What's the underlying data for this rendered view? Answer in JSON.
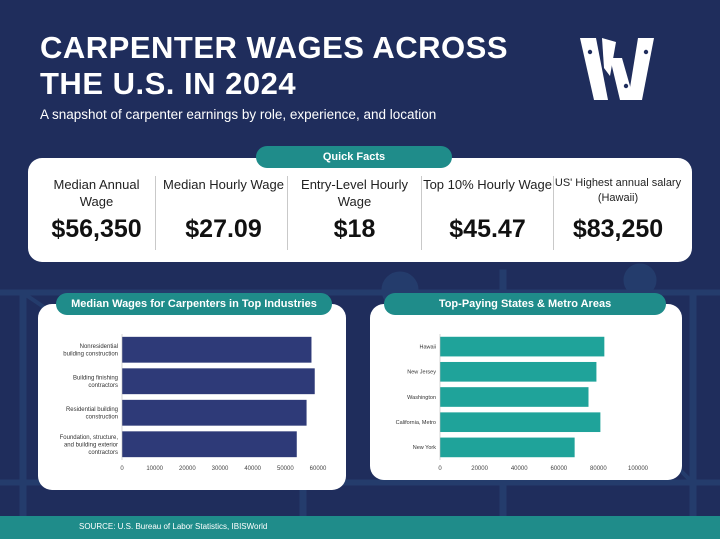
{
  "header": {
    "title_line1": "CARPENTER WAGES ACROSS",
    "title_line2": "THE U.S. IN 2024",
    "subtitle": "A snapshot of carpenter earnings by role, experience, and location"
  },
  "logo": {
    "icon": "w-logo-icon"
  },
  "quick_facts": {
    "heading": "Quick Facts",
    "items": [
      {
        "label": "Median Annual Wage",
        "value": "$56,350"
      },
      {
        "label": "Median Hourly Wage",
        "value": "$27.09"
      },
      {
        "label": "Entry-Level Hourly Wage",
        "value": "$18"
      },
      {
        "label": "Top 10% Hourly Wage",
        "value": "$45.47"
      },
      {
        "label": "US' Highest annual salary (Hawaii)",
        "value": "$83,250"
      }
    ]
  },
  "chart_data": [
    {
      "type": "bar",
      "orientation": "horizontal",
      "title": "Median Wages for Carpenters in Top Industries",
      "categories": [
        "Nonresidential building construction",
        "Building finishing contractors",
        "Residential building construction",
        "Foundation, structure, and building exterior contractors"
      ],
      "values": [
        58000,
        59000,
        56500,
        53500
      ],
      "xlim": [
        0,
        60000
      ],
      "ticks": [
        "0",
        "10000",
        "20000",
        "30000",
        "40000",
        "50000",
        "60000"
      ],
      "color": "#2e3a78"
    },
    {
      "type": "bar",
      "orientation": "horizontal",
      "title": "Top-Paying States & Metro Areas",
      "categories": [
        "Hawaii",
        "New Jersey",
        "Washington",
        "California, Metro",
        "New York"
      ],
      "values": [
        83000,
        79000,
        75000,
        81000,
        68000
      ],
      "xlim": [
        0,
        100000
      ],
      "ticks": [
        "0",
        "20000",
        "40000",
        "60000",
        "80000",
        "100000"
      ],
      "color": "#1fa39a"
    }
  ],
  "footer": {
    "source": "SOURCE: U.S. Bureau of Labor Statistics, IBISWorld"
  },
  "colors": {
    "navy": "#1f2d5c",
    "teal": "#1f8c8a",
    "bar_navy": "#2e3a78",
    "bar_teal": "#1fa39a"
  }
}
